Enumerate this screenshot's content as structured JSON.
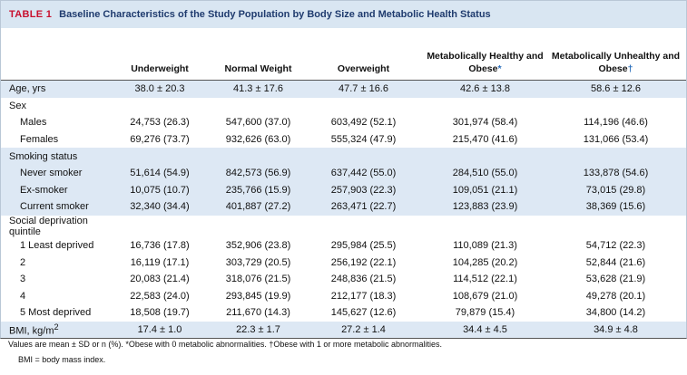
{
  "title": {
    "label": "TABLE 1",
    "text": "Baseline Characteristics of the Study Population by Body Size and Metabolic Health Status"
  },
  "columns": [
    {
      "text": "Underweight"
    },
    {
      "text": "Normal Weight"
    },
    {
      "text": "Overweight"
    },
    {
      "text": "Metabolically Healthy and Obese",
      "mark": "*"
    },
    {
      "text": "Metabolically Unhealthy and Obese",
      "mark": "†"
    }
  ],
  "groups": [
    {
      "rows": [
        {
          "label": "Age, yrs",
          "values": [
            "38.0 ± 20.3",
            "41.3 ± 17.6",
            "47.7 ± 16.6",
            "42.6 ± 13.8",
            "58.6 ± 12.6"
          ]
        }
      ]
    },
    {
      "label": "Sex",
      "rows": [
        {
          "label": "Males",
          "values": [
            "24,753 (26.3)",
            "547,600 (37.0)",
            "603,492 (52.1)",
            "301,974 (58.4)",
            "114,196 (46.6)"
          ]
        },
        {
          "label": "Females",
          "values": [
            "69,276 (73.7)",
            "932,626 (63.0)",
            "555,324 (47.9)",
            "215,470 (41.6)",
            "131,066 (53.4)"
          ]
        }
      ]
    },
    {
      "label": "Smoking status",
      "rows": [
        {
          "label": "Never smoker",
          "values": [
            "51,614 (54.9)",
            "842,573 (56.9)",
            "637,442 (55.0)",
            "284,510 (55.0)",
            "133,878 (54.6)"
          ]
        },
        {
          "label": "Ex-smoker",
          "values": [
            "10,075 (10.7)",
            "235,766 (15.9)",
            "257,903 (22.3)",
            "109,051 (21.1)",
            "73,015 (29.8)"
          ]
        },
        {
          "label": "Current smoker",
          "values": [
            "32,340 (34.4)",
            "401,887 (27.2)",
            "263,471 (22.7)",
            "123,883 (23.9)",
            "38,369 (15.6)"
          ]
        }
      ]
    },
    {
      "label": "Social deprivation quintile",
      "rows": [
        {
          "label": "1 Least deprived",
          "values": [
            "16,736 (17.8)",
            "352,906 (23.8)",
            "295,984 (25.5)",
            "110,089 (21.3)",
            "54,712 (22.3)"
          ]
        },
        {
          "label": "2",
          "values": [
            "16,119 (17.1)",
            "303,729 (20.5)",
            "256,192 (22.1)",
            "104,285 (20.2)",
            "52,844 (21.6)"
          ]
        },
        {
          "label": "3",
          "values": [
            "20,083 (21.4)",
            "318,076 (21.5)",
            "248,836 (21.5)",
            "114,512 (22.1)",
            "53,628 (21.9)"
          ]
        },
        {
          "label": "4",
          "values": [
            "22,583 (24.0)",
            "293,845 (19.9)",
            "212,177 (18.3)",
            "108,679 (21.0)",
            "49,278 (20.1)"
          ]
        },
        {
          "label": "5 Most deprived",
          "values": [
            "18,508 (19.7)",
            "211,670 (14.3)",
            "145,627 (12.6)",
            "79,879 (15.4)",
            "34,800 (14.2)"
          ]
        }
      ]
    },
    {
      "rows": [
        {
          "label": {
            "text": "BMI, kg/m",
            "sup": "2"
          },
          "values": [
            "17.4 ± 1.0",
            "22.3 ± 1.7",
            "27.2 ± 1.4",
            "34.4 ± 4.5",
            "34.9 ± 4.8"
          ]
        }
      ]
    }
  ],
  "footnotes": [
    "Values are mean ± SD or n (%). *Obese with 0 metabolic abnormalities. †Obese with 1 or more metabolic abnormalities.",
    "BMI = body mass index."
  ]
}
